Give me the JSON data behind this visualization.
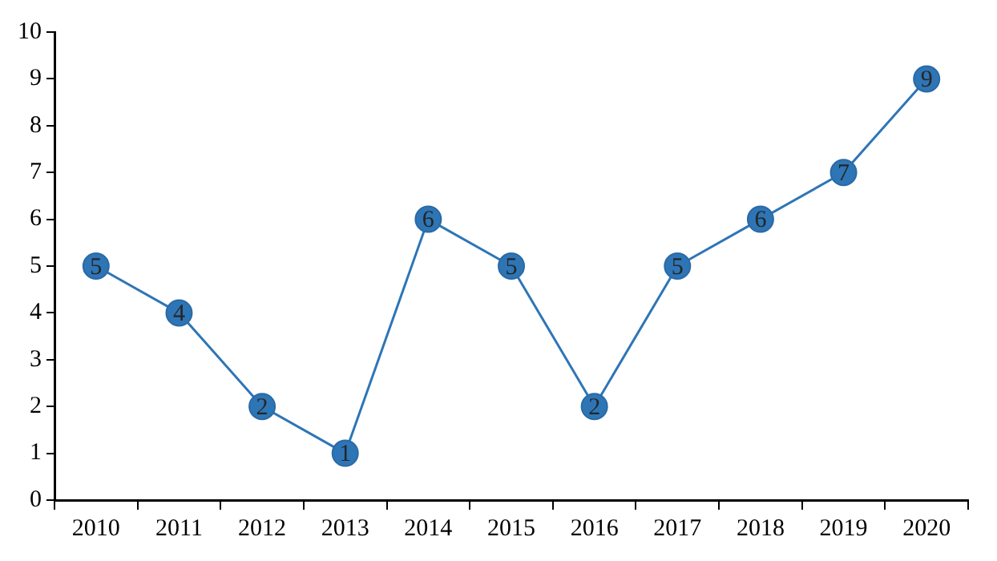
{
  "chart_data": {
    "type": "line",
    "categories": [
      "2010",
      "2011",
      "2012",
      "2013",
      "2014",
      "2015",
      "2016",
      "2017",
      "2018",
      "2019",
      "2020"
    ],
    "series": [
      {
        "color": "#2e75b6",
        "values": [
          5,
          4,
          2,
          1,
          6,
          5,
          2,
          5,
          6,
          7,
          9
        ]
      }
    ],
    "ylim": [
      0,
      10
    ],
    "yticks": [
      0,
      1,
      2,
      3,
      4,
      5,
      6,
      7,
      8,
      9,
      10
    ],
    "grid": false,
    "legend": false,
    "marker": "circle",
    "line_style": "solid",
    "data_labels": true
  }
}
